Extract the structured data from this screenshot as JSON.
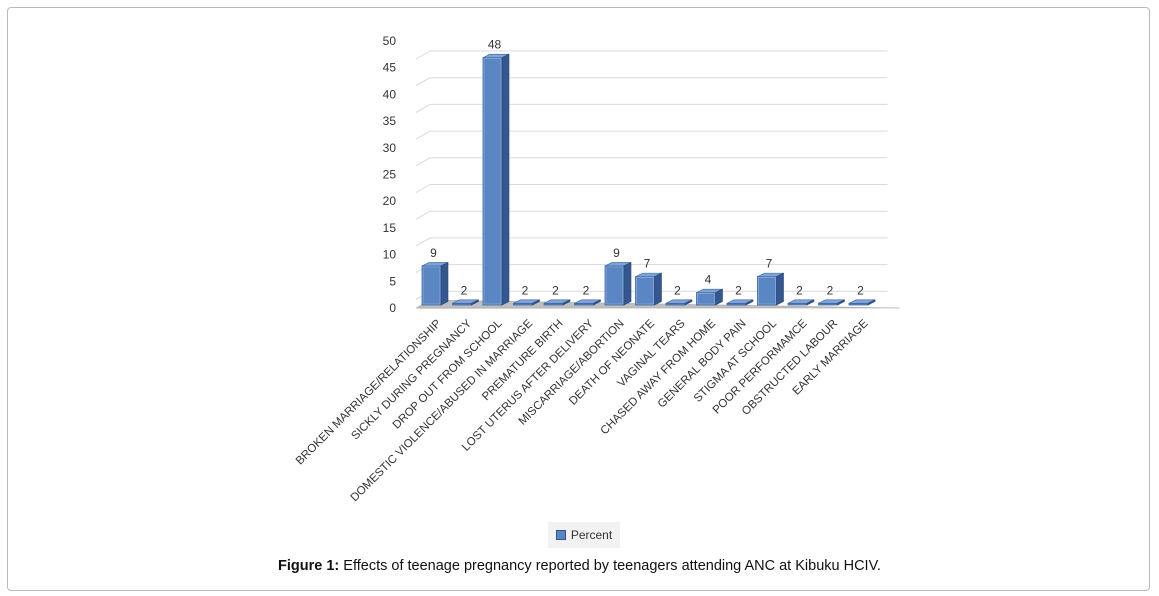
{
  "chart_data": {
    "type": "bar",
    "categories": [
      "BROKEN MARRIAGE/RELATIONSHIP",
      "SICKLY DURING PREGNANCY",
      "DROP OUT FROM SCHOOL",
      "DOMESTIC VIOLENCE/ABUSED IN MARRIAGE",
      "PREMATURE BIRTH",
      "LOST UTERUS AFTER DELIVERY",
      "MISCARRIAGE/ABORTION",
      "DEATH OF NEONATE",
      "VAGINAL TEARS",
      "CHASED AWAY FROM HOME",
      "GENERAL BODY PAIN",
      "STIGMA AT SCHOOL",
      "POOR PERFORMAMCE",
      "OBSTRUCTED LABOUR",
      "EARLY MARRIAGE"
    ],
    "series": [
      {
        "name": "Percent",
        "values": [
          9,
          2,
          48,
          2,
          2,
          2,
          9,
          7,
          2,
          4,
          2,
          7,
          2,
          2,
          2
        ]
      }
    ],
    "ylim": [
      0,
      50
    ],
    "yticks": [
      "0",
      "5",
      "10",
      "15",
      "20",
      "25",
      "30",
      "35",
      "40",
      "45",
      "50"
    ],
    "grid": true,
    "legend_position": "bottom",
    "style": "3d-column",
    "bar_color": "#5b86c4"
  },
  "legend": {
    "label": "Percent"
  },
  "caption": {
    "prefix": "Figure 1:",
    "text": " Effects of teenage pregnancy reported by teenagers attending ANC at Kibuku HCIV."
  }
}
